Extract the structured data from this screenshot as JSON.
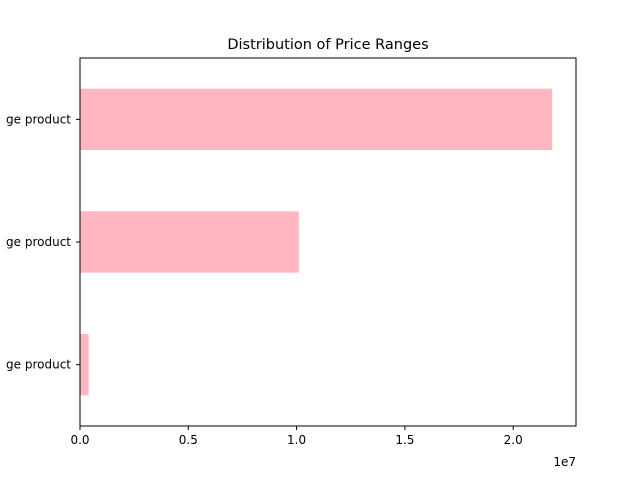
{
  "chart_data": {
    "type": "bar",
    "orientation": "horizontal",
    "title": "Distribution of Price Ranges",
    "xlabel": "",
    "ylabel": "",
    "categories": [
      "ge product",
      "ge product",
      "ge product"
    ],
    "values": [
      400000,
      10100000,
      21800000
    ],
    "xlim": [
      0,
      22900000
    ],
    "xticks": [
      0,
      5000000,
      10000000,
      15000000,
      20000000
    ],
    "xtick_labels": [
      "0.0",
      "0.5",
      "1.0",
      "1.5",
      "2.0"
    ],
    "x_offset_label": "1e7",
    "bar_color": "#ffb6c1",
    "grid": false,
    "legend": "none"
  }
}
